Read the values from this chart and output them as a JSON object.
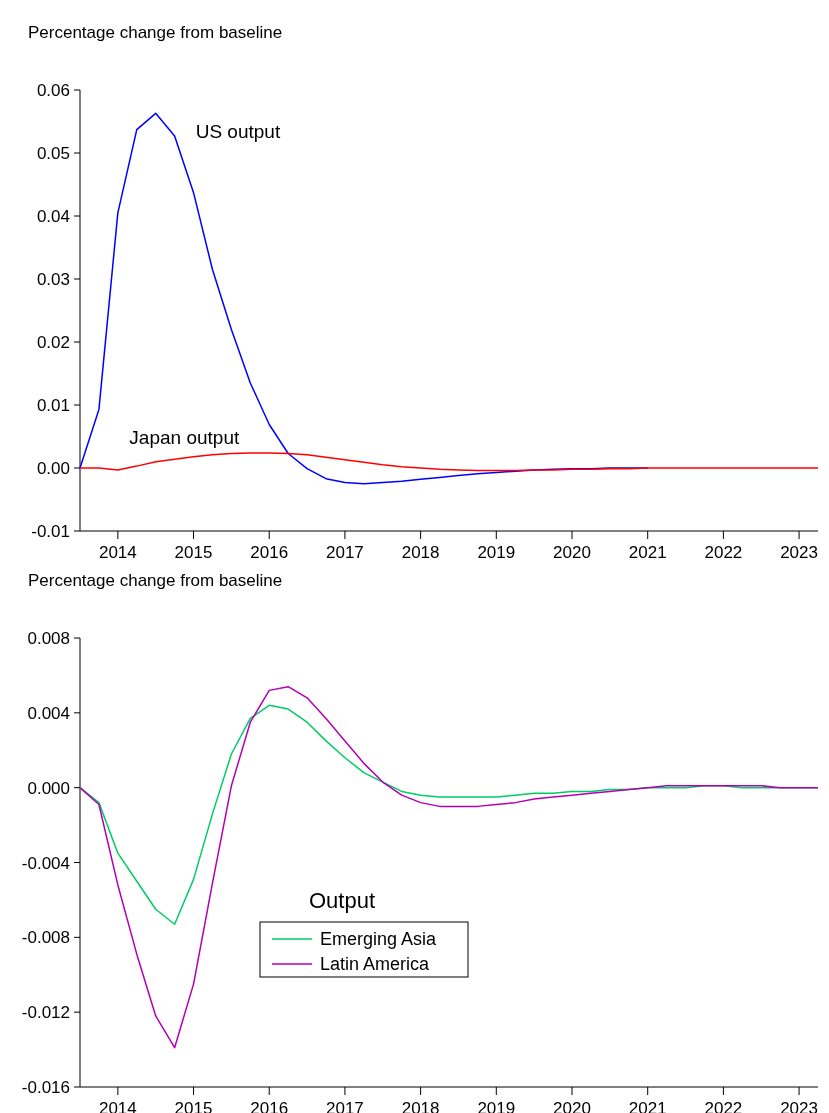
{
  "chart_data": [
    {
      "type": "line",
      "ylabel": "Percentage change from baseline",
      "x": [
        2013.5,
        2013.75,
        2014,
        2014.25,
        2014.5,
        2014.75,
        2015,
        2015.25,
        2015.5,
        2015.75,
        2016,
        2016.25,
        2016.5,
        2016.75,
        2017,
        2017.25,
        2017.5,
        2017.75,
        2018,
        2018.25,
        2018.5,
        2018.75,
        2019,
        2019.25,
        2019.5,
        2019.75,
        2020,
        2020.25,
        2020.5,
        2020.75,
        2021,
        2021.25,
        2021.5,
        2021.75,
        2022,
        2022.25,
        2022.5,
        2022.75,
        2023,
        2023.25
      ],
      "series": [
        {
          "name": "US output",
          "color": "#0000ff",
          "values": [
            0,
            0.0093,
            0.0405,
            0.0537,
            0.0563,
            0.0527,
            0.0437,
            0.0315,
            0.022,
            0.0135,
            0.0069,
            0.0023,
            -0.0001,
            -0.0017,
            -0.0023,
            -0.0025,
            -0.0023,
            -0.0021,
            -0.0018,
            -0.0015,
            -0.0012,
            -0.0009,
            -0.0007,
            -0.0005,
            -0.0003,
            -0.0002,
            -0.0001,
            -0.0001,
            0,
            0,
            0,
            null,
            null,
            null,
            null,
            null,
            null,
            null,
            null,
            null
          ]
        },
        {
          "name": "Japan output",
          "color": "#ff0000",
          "values": [
            0,
            0,
            -0.0003,
            0.0003,
            0.001,
            0.0014,
            0.0018,
            0.0021,
            0.0023,
            0.0024,
            0.0024,
            0.0023,
            0.0021,
            0.0017,
            0.0013,
            0.0009,
            0.0005,
            0.0002,
            0,
            -0.0002,
            -0.0003,
            -0.0004,
            -0.0004,
            -0.0004,
            -0.0003,
            -0.0003,
            -0.0002,
            -0.0002,
            -0.0001,
            -0.0001,
            0,
            0,
            0,
            0,
            0,
            0,
            0,
            0,
            0,
            0
          ]
        }
      ],
      "xlim": [
        2013.5,
        2023.25
      ],
      "xticks": [
        2014,
        2015,
        2016,
        2017,
        2018,
        2019,
        2020,
        2021,
        2022,
        2023
      ],
      "ylim": [
        -0.01,
        0.06
      ],
      "yticks": [
        {
          "value": -0.01,
          "label": "-0.01"
        },
        {
          "value": 0,
          "label": "0.00"
        },
        0.01,
        0.02,
        0.03,
        0.04,
        0.05,
        0.06
      ],
      "grid": false,
      "legend": false,
      "line_style": "solid",
      "marker": "none"
    },
    {
      "type": "line",
      "ylabel": "Percentage change from baseline",
      "legend_title": "Output",
      "x": [
        2013.5,
        2013.75,
        2014,
        2014.25,
        2014.5,
        2014.75,
        2015,
        2015.25,
        2015.5,
        2015.75,
        2016,
        2016.25,
        2016.5,
        2016.75,
        2017,
        2017.25,
        2017.5,
        2017.75,
        2018,
        2018.25,
        2018.5,
        2018.75,
        2019,
        2019.25,
        2019.5,
        2019.75,
        2020,
        2020.25,
        2020.5,
        2020.75,
        2021,
        2021.25,
        2021.5,
        2021.75,
        2022,
        2022.25,
        2022.5,
        2022.75,
        2023,
        2023.25
      ],
      "series": [
        {
          "name": "Emerging Asia",
          "color": "#00cc66",
          "values": [
            0,
            -0.0008,
            -0.0035,
            -0.005,
            -0.0065,
            -0.0073,
            -0.0049,
            -0.0014,
            0.0018,
            0.0037,
            0.0044,
            0.0042,
            0.0035,
            0.0025,
            0.0016,
            0.0008,
            0.0003,
            -0.0002,
            -0.0004,
            -0.0005,
            -0.0005,
            -0.0005,
            -0.0005,
            -0.0004,
            -0.0003,
            -0.0003,
            -0.0002,
            -0.0002,
            -0.0001,
            -0.0001,
            0,
            0,
            0,
            0.0001,
            0.0001,
            0,
            0,
            0,
            0,
            0
          ]
        },
        {
          "name": "Latin America",
          "color": "#b300b3",
          "values": [
            0,
            -0.0009,
            -0.0052,
            -0.0089,
            -0.0122,
            -0.0139,
            -0.0105,
            -0.0051,
            0.0001,
            0.0035,
            0.0052,
            0.0054,
            0.0048,
            0.0037,
            0.0025,
            0.0013,
            0.0003,
            -0.0004,
            -0.0008,
            -0.001,
            -0.001,
            -0.001,
            -0.0009,
            -0.0008,
            -0.0006,
            -0.0005,
            -0.0004,
            -0.0003,
            -0.0002,
            -0.0001,
            0,
            0.0001,
            0.0001,
            0.0001,
            0.0001,
            0.0001,
            0.0001,
            0,
            0,
            0
          ]
        }
      ],
      "xlim": [
        2013.5,
        2023.25
      ],
      "xticks": [
        2014,
        2015,
        2016,
        2017,
        2018,
        2019,
        2020,
        2021,
        2022,
        2023
      ],
      "ylim": [
        -0.016,
        0.008
      ],
      "yticks": [
        {
          "value": -0.016,
          "label": "-0.016"
        },
        {
          "value": -0.012,
          "label": "-0.012"
        },
        {
          "value": -0.008,
          "label": "-0.008"
        },
        {
          "value": -0.004,
          "label": "-0.004"
        },
        {
          "value": 0,
          "label": "0.000"
        },
        {
          "value": 0.004,
          "label": "0.004"
        },
        {
          "value": 0.008,
          "label": "0.008"
        }
      ],
      "grid": false,
      "legend": "bottom center",
      "line_style": "solid",
      "marker": "none"
    }
  ]
}
